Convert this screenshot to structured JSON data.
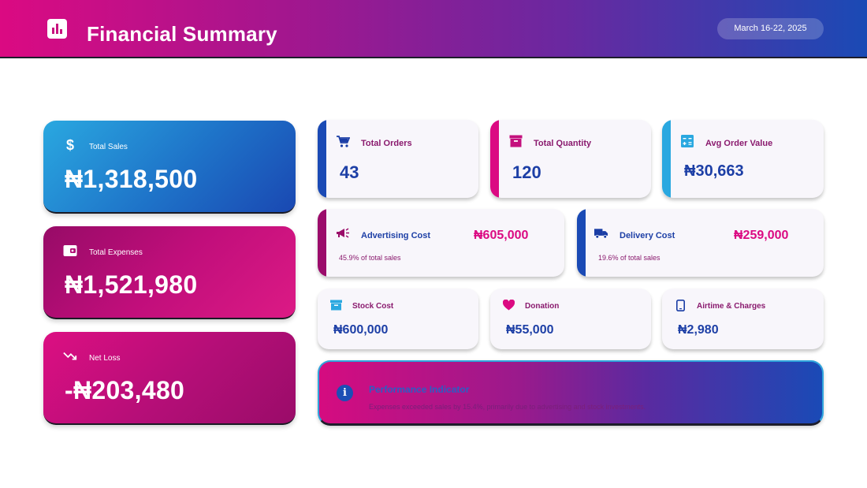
{
  "header": {
    "title": "Financial Summary",
    "icon": "bar-chart-icon",
    "date_range": "March 16-22, 2025"
  },
  "summary_cards": {
    "sales": {
      "label": "Total Sales",
      "value": "₦1,318,500",
      "icon": "dollar-icon"
    },
    "expenses": {
      "label": "Total Expenses",
      "value": "₦1,521,980",
      "icon": "wallet-icon"
    },
    "net": {
      "label": "Net Loss",
      "value": "-₦203,480",
      "icon": "trending-down-icon"
    }
  },
  "kpis": {
    "orders": {
      "label": "Total Orders",
      "value": "43",
      "icon": "cart-icon"
    },
    "quantity": {
      "label": "Total Quantity",
      "value": "120",
      "icon": "box-icon"
    },
    "avg_order": {
      "label": "Avg Order Value",
      "value": "₦30,663",
      "icon": "calculator-icon"
    },
    "advertising": {
      "label": "Advertising Cost",
      "value": "₦605,000",
      "note": "45.9% of total sales",
      "icon": "megaphone-icon"
    },
    "delivery": {
      "label": "Delivery Cost",
      "value": "₦259,000",
      "note": "19.6% of total sales",
      "icon": "truck-icon"
    },
    "stock": {
      "label": "Stock Cost",
      "value": "₦600,000",
      "icon": "archive-icon"
    },
    "donation": {
      "label": "Donation",
      "value": "₦55,000",
      "icon": "heart-icon"
    },
    "airtime": {
      "label": "Airtime & Charges",
      "value": "₦2,980",
      "icon": "phone-icon"
    }
  },
  "performance": {
    "title": "Performance Indicator",
    "text": "Expenses exceeded sales by 15.4%, primarily due to advertising and stock investments.",
    "icon": "info-icon"
  },
  "colors": {
    "pink": "#db0a82",
    "magenta_dark": "#970b67",
    "blue": "#1a4ab5",
    "sky": "#2aa8e0",
    "navy_text": "#1d3fa6"
  }
}
